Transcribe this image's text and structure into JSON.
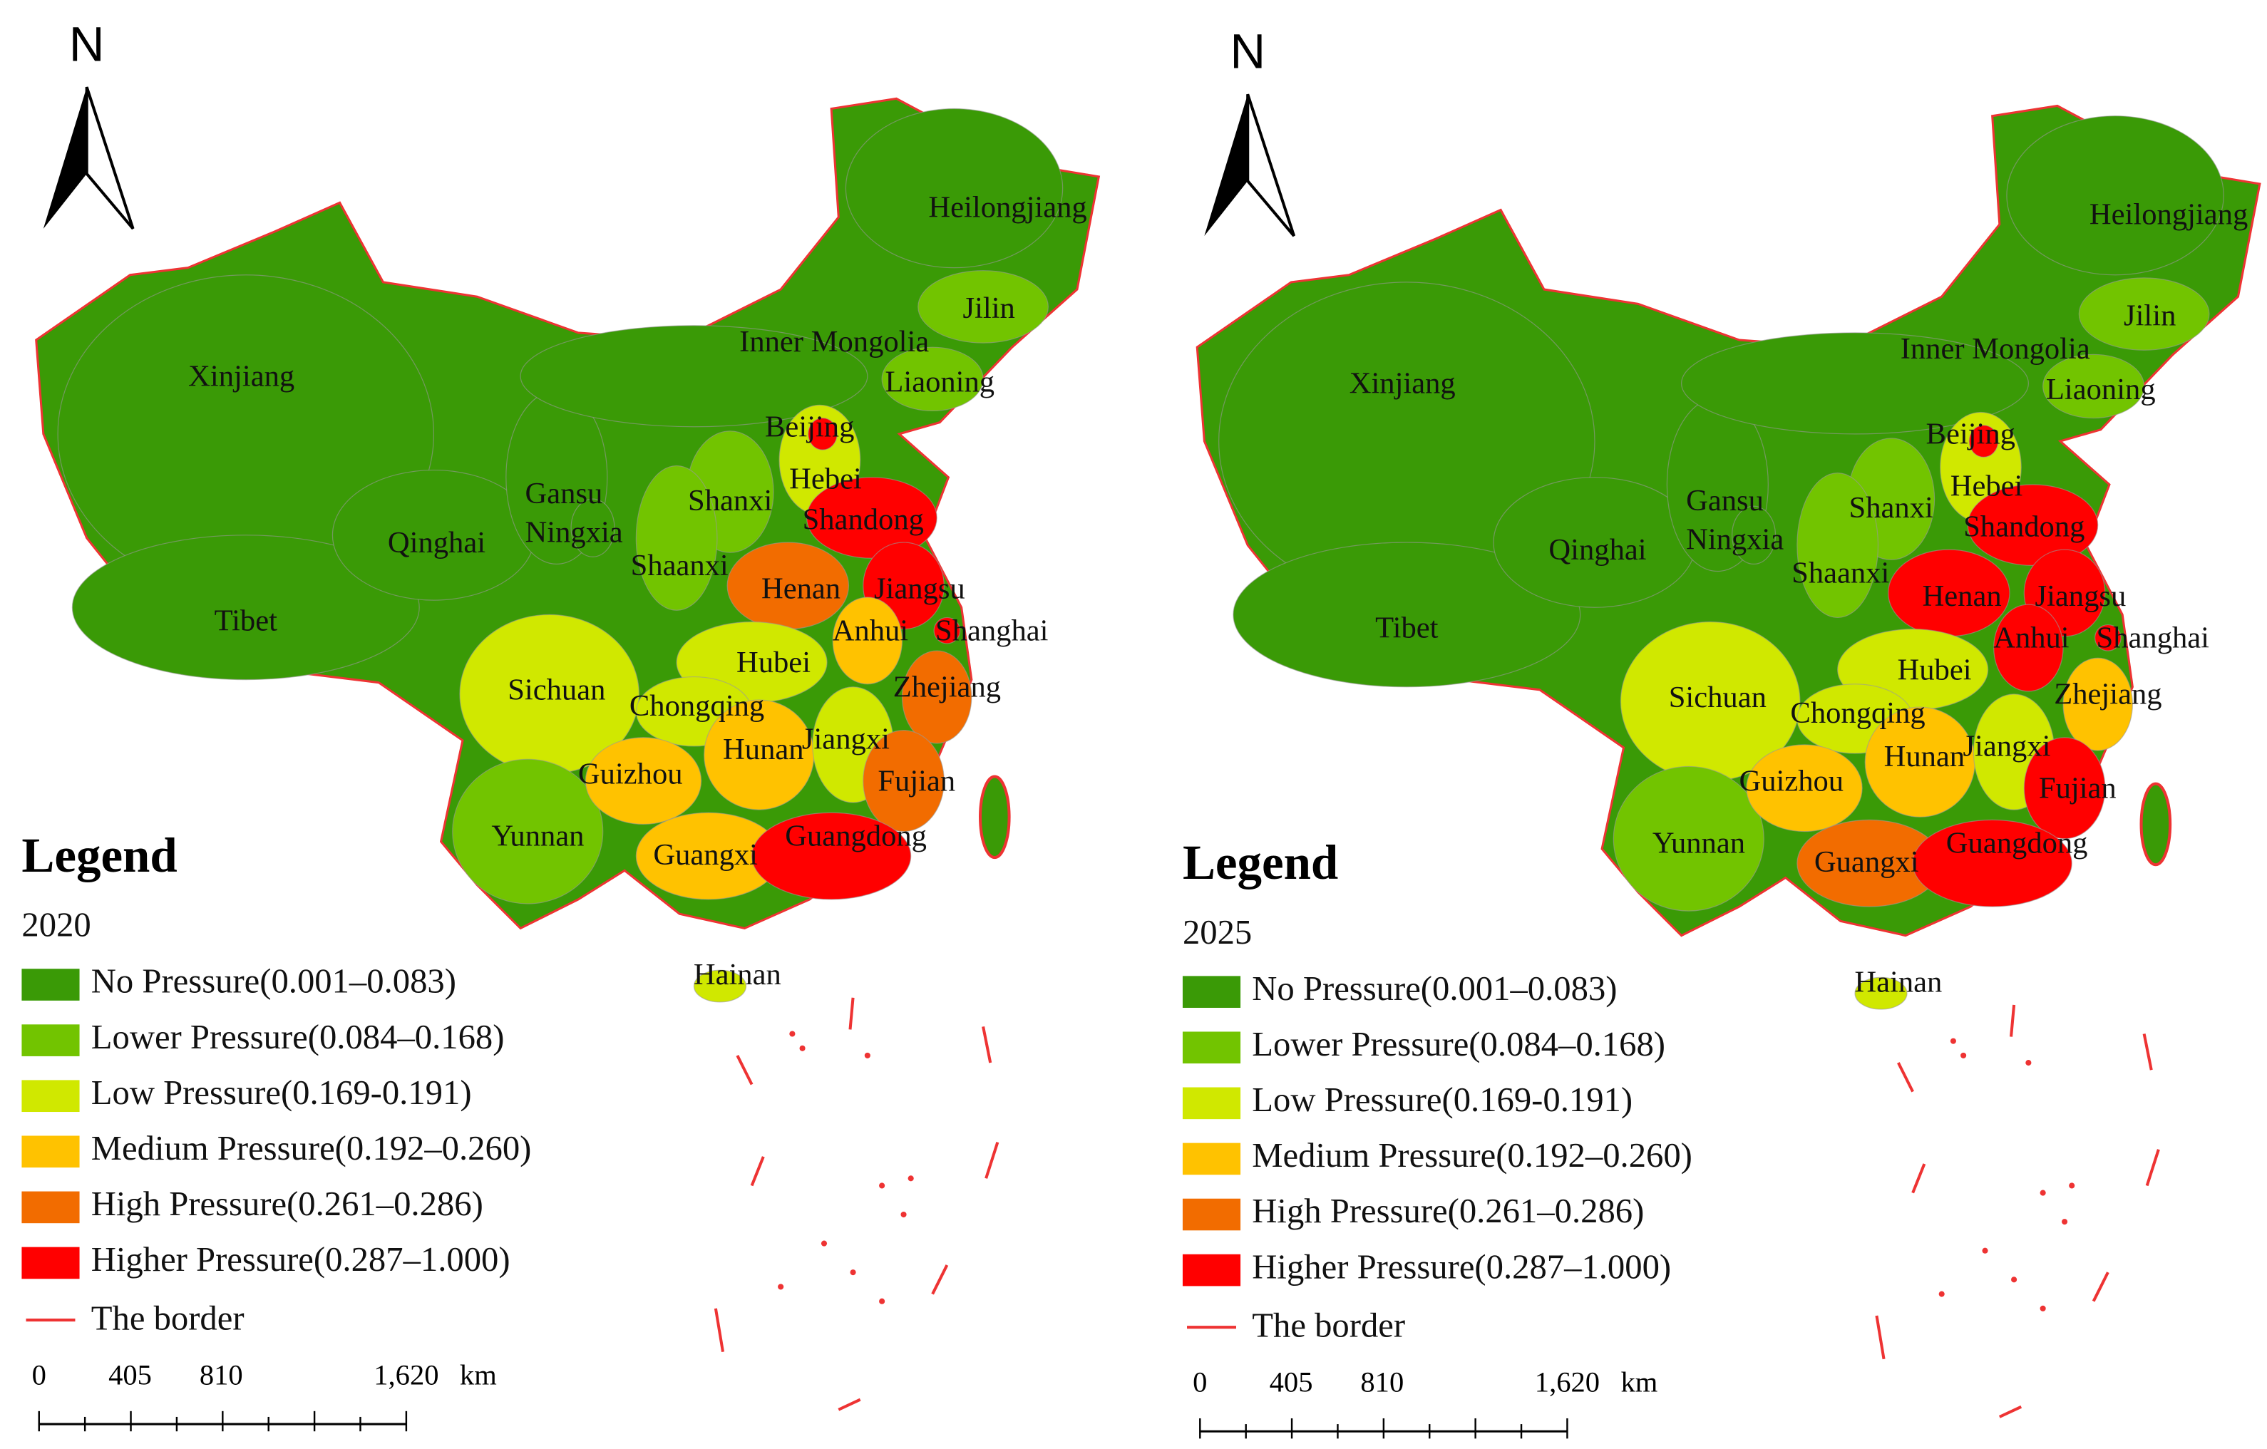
{
  "maps": [
    {
      "north": "N",
      "legend_title": "Legend",
      "year": "2020",
      "border_label": "The border",
      "legend": [
        {
          "label": "No Pressure(0.001–0.083)",
          "color": "#3a9a06"
        },
        {
          "label": "Lower Pressure(0.084–0.168)",
          "color": "#72c400"
        },
        {
          "label": "Low Pressure(0.169-0.191)",
          "color": "#d0e800"
        },
        {
          "label": "Medium Pressure(0.192–0.260)",
          "color": "#ffc200"
        },
        {
          "label": "High Pressure(0.261–0.286)",
          "color": "#f26c00"
        },
        {
          "label": "Higher Pressure(0.287–1.000)",
          "color": "#ff0000"
        }
      ],
      "scale": {
        "ticks": [
          "0",
          "405",
          "810",
          "1,620"
        ],
        "unit": "km"
      },
      "provinces": [
        {
          "name": "Xinjiang",
          "color": "#3a9a06"
        },
        {
          "name": "Tibet",
          "color": "#3a9a06"
        },
        {
          "name": "Qinghai",
          "color": "#3a9a06"
        },
        {
          "name": "Gansu",
          "color": "#3a9a06"
        },
        {
          "name": "Ningxia",
          "color": "#3a9a06"
        },
        {
          "name": "Inner Mongolia",
          "color": "#3a9a06"
        },
        {
          "name": "Heilongjiang",
          "color": "#3a9a06"
        },
        {
          "name": "Jilin",
          "color": "#72c400"
        },
        {
          "name": "Liaoning",
          "color": "#72c400"
        },
        {
          "name": "Hebei",
          "color": "#d0e800"
        },
        {
          "name": "Beijing",
          "color": "#ff0000"
        },
        {
          "name": "Shandong",
          "color": "#ff0000"
        },
        {
          "name": "Shanxi",
          "color": "#72c400"
        },
        {
          "name": "Shaanxi",
          "color": "#72c400"
        },
        {
          "name": "Henan",
          "color": "#f26c00"
        },
        {
          "name": "Jiangsu",
          "color": "#ff0000"
        },
        {
          "name": "Anhui",
          "color": "#ffc200"
        },
        {
          "name": "Shanghai",
          "color": "#ff0000"
        },
        {
          "name": "Hubei",
          "color": "#d0e800"
        },
        {
          "name": "Zhejiang",
          "color": "#f26c00"
        },
        {
          "name": "Sichuan",
          "color": "#d0e800"
        },
        {
          "name": "Chongqing",
          "color": "#d0e800"
        },
        {
          "name": "Yunnan",
          "color": "#72c400"
        },
        {
          "name": "Guizhou",
          "color": "#ffc200"
        },
        {
          "name": "Hunan",
          "color": "#ffc200"
        },
        {
          "name": "Jiangxi",
          "color": "#d0e800"
        },
        {
          "name": "Fujian",
          "color": "#f26c00"
        },
        {
          "name": "Guangxi",
          "color": "#ffc200"
        },
        {
          "name": "Guangdong",
          "color": "#ff0000"
        },
        {
          "name": "Hainan",
          "color": "#d0e800"
        }
      ]
    },
    {
      "north": "N",
      "legend_title": "Legend",
      "year": "2025",
      "border_label": "The border",
      "legend": [
        {
          "label": "No Pressure(0.001–0.083)",
          "color": "#3a9a06"
        },
        {
          "label": "Lower Pressure(0.084–0.168)",
          "color": "#72c400"
        },
        {
          "label": "Low Pressure(0.169-0.191)",
          "color": "#d0e800"
        },
        {
          "label": "Medium Pressure(0.192–0.260)",
          "color": "#ffc200"
        },
        {
          "label": "High Pressure(0.261–0.286)",
          "color": "#f26c00"
        },
        {
          "label": "Higher Pressure(0.287–1.000)",
          "color": "#ff0000"
        }
      ],
      "scale": {
        "ticks": [
          "0",
          "405",
          "810",
          "1,620"
        ],
        "unit": "km"
      },
      "provinces": [
        {
          "name": "Xinjiang",
          "color": "#3a9a06"
        },
        {
          "name": "Tibet",
          "color": "#3a9a06"
        },
        {
          "name": "Qinghai",
          "color": "#3a9a06"
        },
        {
          "name": "Gansu",
          "color": "#3a9a06"
        },
        {
          "name": "Ningxia",
          "color": "#3a9a06"
        },
        {
          "name": "Inner Mongolia",
          "color": "#3a9a06"
        },
        {
          "name": "Heilongjiang",
          "color": "#3a9a06"
        },
        {
          "name": "Jilin",
          "color": "#72c400"
        },
        {
          "name": "Liaoning",
          "color": "#72c400"
        },
        {
          "name": "Hebei",
          "color": "#d0e800"
        },
        {
          "name": "Beijing",
          "color": "#ff0000"
        },
        {
          "name": "Shandong",
          "color": "#ff0000"
        },
        {
          "name": "Shanxi",
          "color": "#72c400"
        },
        {
          "name": "Shaanxi",
          "color": "#72c400"
        },
        {
          "name": "Henan",
          "color": "#ff0000"
        },
        {
          "name": "Jiangsu",
          "color": "#ff0000"
        },
        {
          "name": "Anhui",
          "color": "#ff0000"
        },
        {
          "name": "Shanghai",
          "color": "#ff0000"
        },
        {
          "name": "Hubei",
          "color": "#d0e800"
        },
        {
          "name": "Zhejiang",
          "color": "#ffc200"
        },
        {
          "name": "Sichuan",
          "color": "#d0e800"
        },
        {
          "name": "Chongqing",
          "color": "#d0e800"
        },
        {
          "name": "Yunnan",
          "color": "#72c400"
        },
        {
          "name": "Guizhou",
          "color": "#ffc200"
        },
        {
          "name": "Hunan",
          "color": "#ffc200"
        },
        {
          "name": "Jiangxi",
          "color": "#d0e800"
        },
        {
          "name": "Fujian",
          "color": "#ff0000"
        },
        {
          "name": "Guangxi",
          "color": "#f26c00"
        },
        {
          "name": "Guangdong",
          "color": "#ff0000"
        },
        {
          "name": "Hainan",
          "color": "#d0e800"
        }
      ]
    }
  ]
}
